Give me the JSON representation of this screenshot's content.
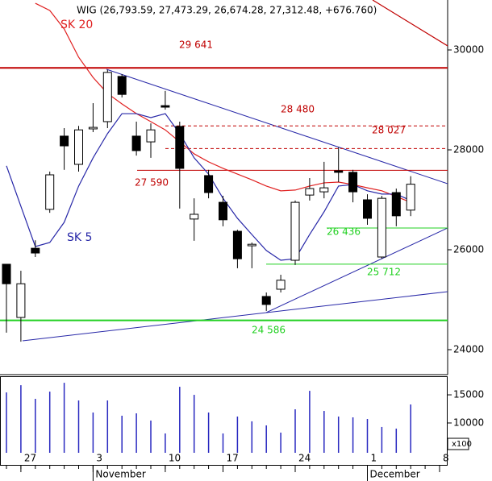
{
  "chart_data": [
    {
      "type": "candlestick",
      "title": "WIG (26,793.59, 27,473.29, 26,674.28, 27,312.48, +676.760)",
      "categories": [
        null,
        "27",
        null,
        null,
        null,
        null,
        "3",
        null,
        null,
        null,
        null,
        "10",
        null,
        null,
        null,
        "17",
        null,
        null,
        null,
        null,
        "24",
        null,
        null,
        null,
        null,
        "1",
        null,
        null,
        null,
        null,
        "8"
      ],
      "months": [
        "November",
        "December"
      ],
      "open": [
        25710,
        24645,
        26030,
        26810,
        28275,
        27710,
        28420,
        28565,
        29470,
        28275,
        28160,
        28885,
        28470,
        26615,
        27485,
        26950,
        26370,
        26080,
        25065,
        25210,
        25790,
        27095,
        27160,
        27580,
        27550,
        27000,
        25855,
        27145,
        26793.59,
        null,
        null
      ],
      "high": [
        25710,
        25580,
        26190,
        27565,
        28435,
        28480,
        28935,
        29600,
        29515,
        28565,
        28530,
        29180,
        28565,
        27030,
        27600,
        27080,
        26400,
        26145,
        25145,
        25500,
        26985,
        27435,
        27760,
        28050,
        27600,
        27110,
        27080,
        27225,
        27473.29,
        null,
        null
      ],
      "low": [
        24340,
        24160,
        25855,
        26740,
        27600,
        27565,
        28355,
        28435,
        29050,
        27885,
        27840,
        28805,
        26825,
        26180,
        27030,
        26470,
        25630,
        25630,
        24775,
        25145,
        25695,
        26985,
        27030,
        27355,
        26950,
        26500,
        25820,
        26470,
        26674.28,
        null,
        null
      ],
      "close": [
        25320,
        25320,
        25935,
        27500,
        28080,
        28400,
        28450,
        29550,
        29110,
        27985,
        28400,
        28855,
        27630,
        26710,
        27145,
        26600,
        25820,
        26110,
        24905,
        25390,
        26950,
        27225,
        27240,
        27550,
        27160,
        26630,
        27030,
        26680,
        27312.48,
        null,
        null
      ],
      "series": [
        {
          "name": "SK 20",
          "color": "#e02020",
          "values": [
            null,
            null,
            30935,
            30790,
            30420,
            29855,
            29450,
            29130,
            28920,
            28725,
            28565,
            28400,
            28160,
            27920,
            27760,
            27630,
            27515,
            27400,
            27275,
            27180,
            27195,
            27275,
            27340,
            27355,
            27305,
            27240,
            27180,
            27065,
            26950,
            null,
            null
          ]
        },
        {
          "name": "SK 5",
          "color": "#2828a8",
          "values": [
            27680,
            26870,
            26065,
            26145,
            26550,
            27275,
            27840,
            28325,
            28725,
            28725,
            28645,
            28725,
            28325,
            27840,
            27515,
            27030,
            26630,
            26305,
            25985,
            25790,
            25820,
            26305,
            26760,
            27275,
            27305,
            27180,
            27115,
            27115,
            26985,
            null,
            null
          ]
        }
      ],
      "levels": [
        {
          "value": 29641,
          "label": "29 641",
          "color": "#c00000",
          "style": "solid"
        },
        {
          "value": 28480,
          "label": "28 480",
          "color": "#c00000",
          "style": "dashed"
        },
        {
          "value": 28027,
          "label": "28 027",
          "color": "#c00000",
          "style": "dashed"
        },
        {
          "value": 27590,
          "label": "27 590",
          "color": "#c00000",
          "style": "solid"
        },
        {
          "value": 26436,
          "label": "26 436",
          "color": "#20d020",
          "style": "solid"
        },
        {
          "value": 25712,
          "label": "25 712",
          "color": "#20d020",
          "style": "solid"
        },
        {
          "value": 24586,
          "label": "24 586",
          "color": "#20d020",
          "style": "solid"
        }
      ],
      "ylim": [
        23500,
        31000
      ],
      "yticks": [
        24000,
        26000,
        28000,
        30000
      ]
    },
    {
      "type": "bar",
      "values": [
        15430,
        16710,
        14290,
        15570,
        17140,
        14000,
        11860,
        14000,
        11290,
        11710,
        10430,
        8140,
        16430,
        15000,
        11860,
        8140,
        11140,
        10290,
        9570,
        8290,
        12430,
        15710,
        12140,
        11140,
        11000,
        10710,
        9290,
        9000,
        13290,
        null,
        null
      ],
      "color": "#2828c0",
      "unit_label": "x100",
      "ylim": [
        4700,
        18300
      ],
      "yticks": [
        10000,
        15000
      ]
    }
  ]
}
